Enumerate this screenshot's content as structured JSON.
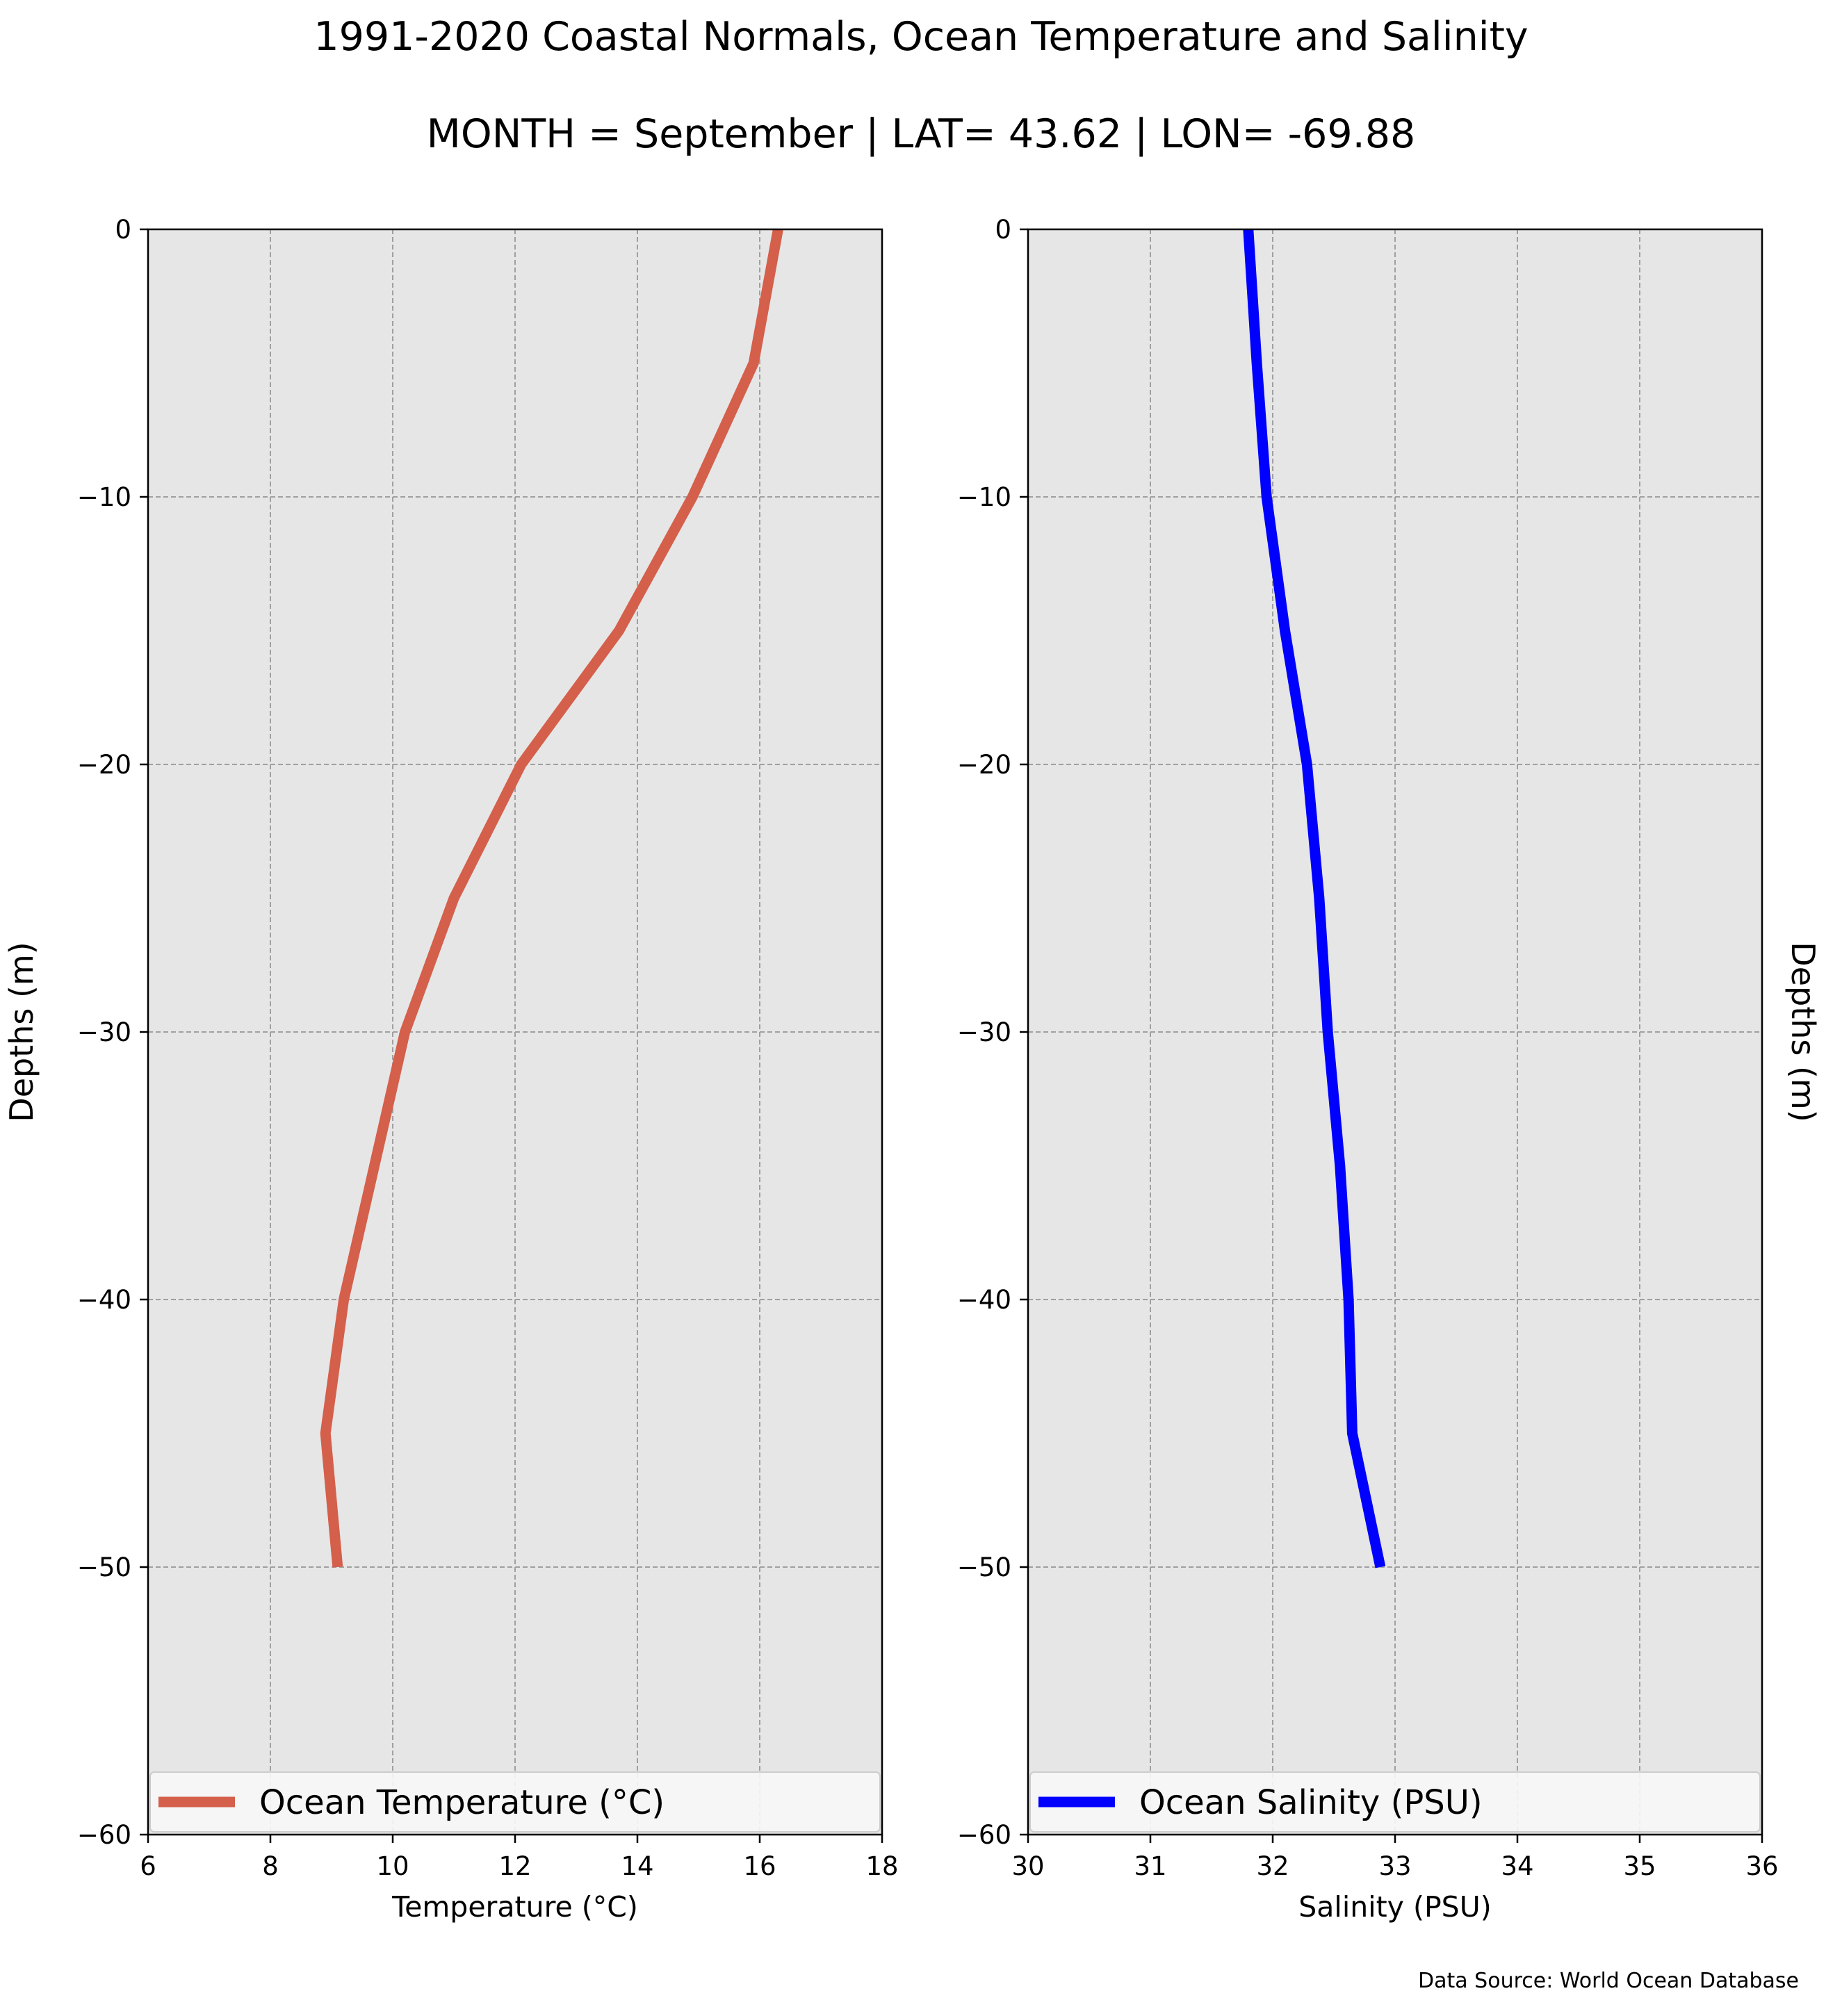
{
  "title": "1991-2020 Coastal Normals, Ocean Temperature and Salinity",
  "subtitle": "MONTH = September | LAT= 43.62 | LON= -69.88",
  "source_note": "Data Source: World Ocean Database",
  "colors": {
    "panel_background": "#e6e6e6",
    "grid": "#a0a0a0",
    "temperature_line": "#d45f4b",
    "salinity_line": "#0000ff"
  },
  "chart_data": [
    {
      "type": "line",
      "orientation": "vertical-profile",
      "xlabel": "Temperature ($^\\circ$C)",
      "xlabel_display": "Temperature (°C)",
      "ylabel": "Depths (m)",
      "xlim": [
        6,
        18
      ],
      "ylim": [
        -60,
        0
      ],
      "xticks": [
        "6",
        "8",
        "10",
        "12",
        "14",
        "16",
        "18"
      ],
      "yticks": [
        "0",
        "−10",
        "−20",
        "−30",
        "−40",
        "−50",
        "−60"
      ],
      "grid": true,
      "legend_position": "lower-center",
      "series": [
        {
          "name": "Ocean Temperature (°C)",
          "x": [
            16.3,
            15.9,
            14.9,
            13.7,
            12.9,
            12.1,
            11.0,
            10.2,
            9.7,
            9.2,
            8.9,
            9.1
          ],
          "y": [
            0,
            -5,
            -10,
            -15,
            -17.5,
            -20,
            -25,
            -30,
            -35,
            -40,
            -45,
            -50
          ]
        }
      ]
    },
    {
      "type": "line",
      "orientation": "vertical-profile",
      "xlabel": "Salinity (PSU)",
      "ylabel": "Depths (m)",
      "xlim": [
        30,
        36
      ],
      "ylim": [
        -60,
        0
      ],
      "xticks": [
        "30",
        "31",
        "32",
        "33",
        "34",
        "35",
        "36"
      ],
      "yticks": [
        "0",
        "−10",
        "−20",
        "−30",
        "−40",
        "−50",
        "−60"
      ],
      "grid": true,
      "legend_position": "lower-center",
      "series": [
        {
          "name": "Ocean Salinity (PSU)",
          "x": [
            31.8,
            31.87,
            31.95,
            32.1,
            32.28,
            32.38,
            32.45,
            32.55,
            32.62,
            32.65,
            32.88
          ],
          "y": [
            0,
            -5,
            -10,
            -15,
            -20,
            -25,
            -30,
            -35,
            -40,
            -45,
            -50
          ]
        }
      ]
    }
  ]
}
